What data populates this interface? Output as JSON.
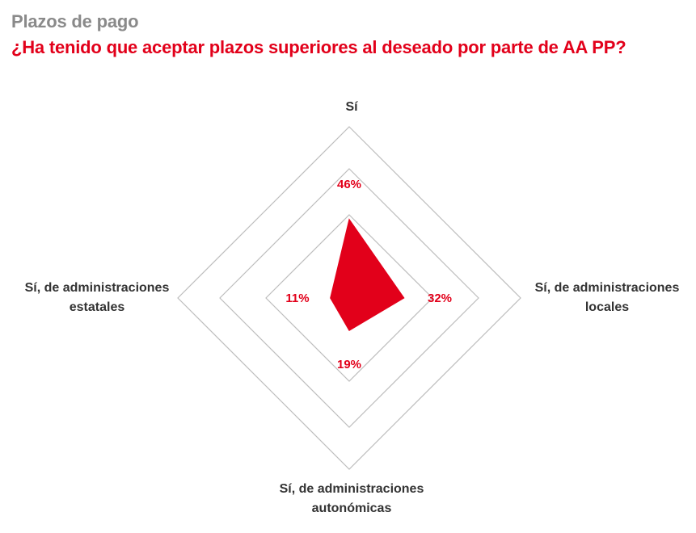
{
  "header": {
    "kicker": "Plazos de pago",
    "title": "¿Ha tenido que aceptar plazos superiores al deseado por parte de AA PP?"
  },
  "colors": {
    "accent": "#e2001a",
    "kicker": "#8a8a8a",
    "grid": "#bdbdbd",
    "axis_text": "#333333"
  },
  "chart_data": {
    "type": "radar",
    "axes": [
      {
        "label": [
          "Sí"
        ],
        "value": 46,
        "value_label": "46%"
      },
      {
        "label": [
          "Sí, de administraciones",
          "locales"
        ],
        "value": 32,
        "value_label": "32%"
      },
      {
        "label": [
          "Sí, de administraciones",
          "autonómicas"
        ],
        "value": 19,
        "value_label": "19%"
      },
      {
        "label": [
          "Sí, de administraciones",
          "estatales"
        ],
        "value": 11,
        "value_label": "11%"
      }
    ],
    "unit": "%",
    "scale_max": 100,
    "grid_levels": 3,
    "grid": true,
    "legend": "none"
  }
}
